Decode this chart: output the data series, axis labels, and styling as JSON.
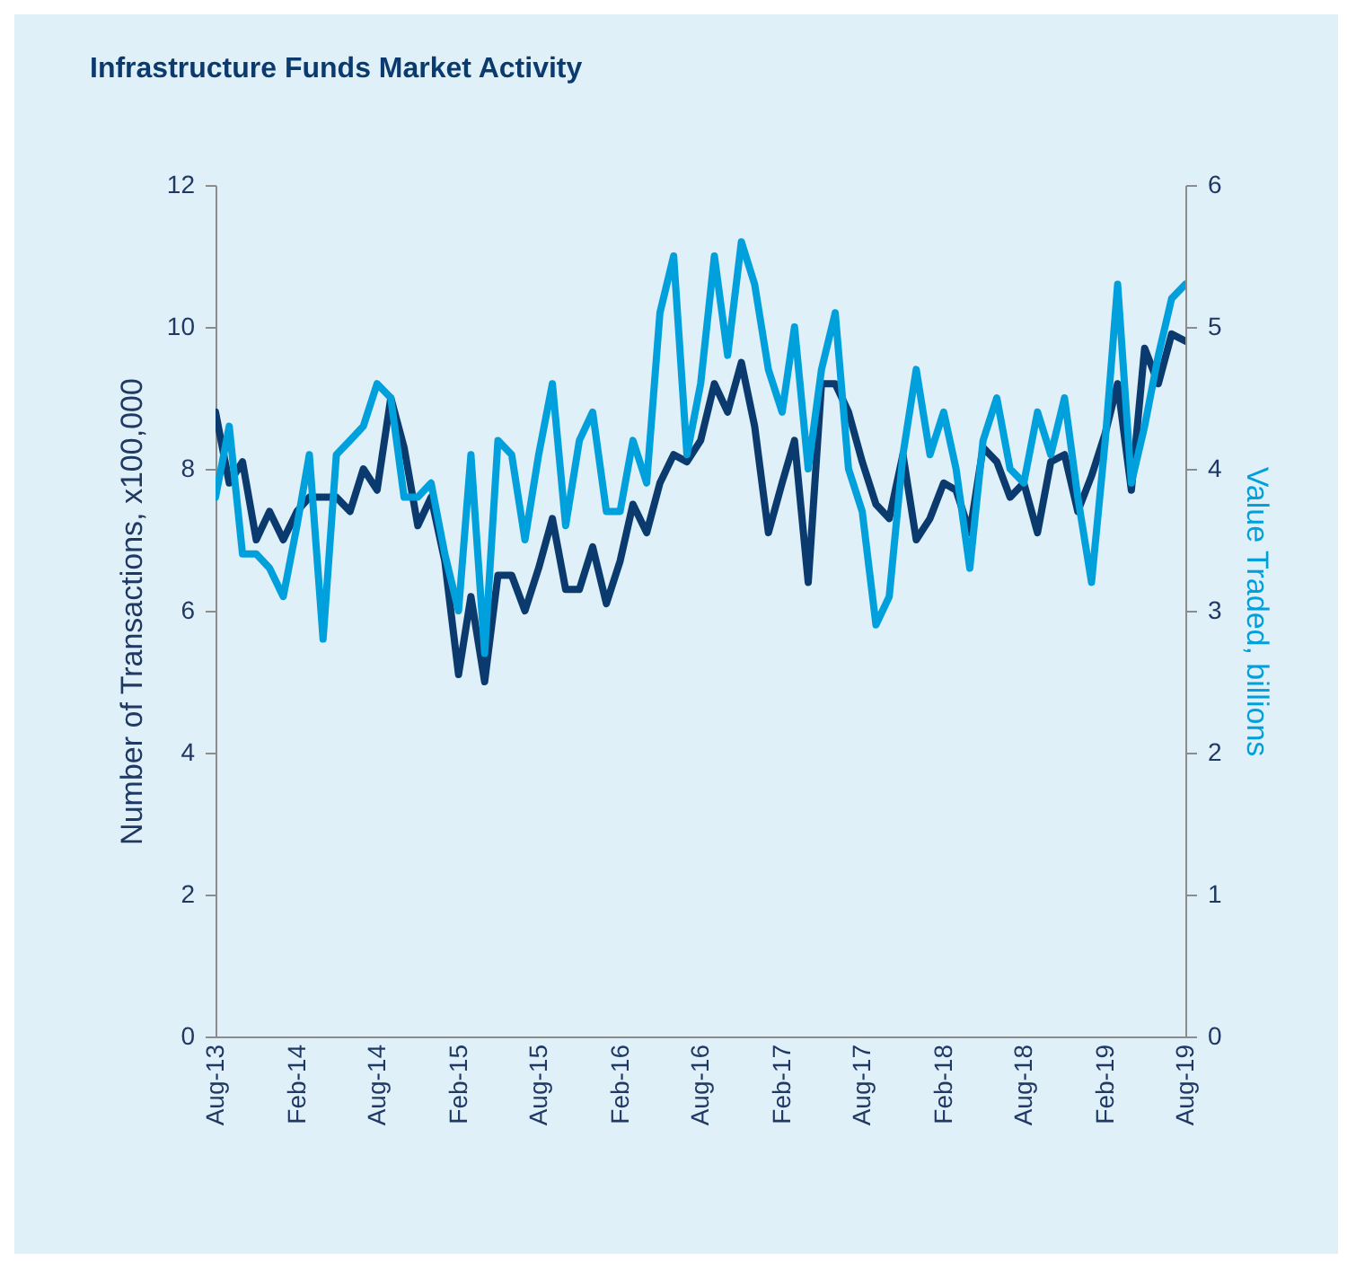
{
  "chart_data": {
    "type": "line",
    "title": "Infrastructure Funds Market Activity",
    "ylabel": "Number of Transactions, x100,000",
    "y2label": "Value Traded, billions",
    "x": [
      "2013-08",
      "2013-09",
      "2013-10",
      "2013-11",
      "2013-12",
      "2014-01",
      "2014-02",
      "2014-03",
      "2014-04",
      "2014-05",
      "2014-06",
      "2014-07",
      "2014-08",
      "2014-09",
      "2014-10",
      "2014-11",
      "2014-12",
      "2015-01",
      "2015-02",
      "2015-03",
      "2015-04",
      "2015-05",
      "2015-06",
      "2015-07",
      "2015-08",
      "2015-09",
      "2015-10",
      "2015-11",
      "2015-12",
      "2016-01",
      "2016-02",
      "2016-03",
      "2016-04",
      "2016-05",
      "2016-06",
      "2016-07",
      "2016-08",
      "2016-09",
      "2016-10",
      "2016-11",
      "2016-12",
      "2017-01",
      "2017-02",
      "2017-03",
      "2017-04",
      "2017-05",
      "2017-06",
      "2017-07",
      "2017-08",
      "2017-09",
      "2017-10",
      "2017-11",
      "2017-12",
      "2018-01",
      "2018-02",
      "2018-03",
      "2018-04",
      "2018-05",
      "2018-06",
      "2018-07",
      "2018-08",
      "2018-09",
      "2018-10",
      "2018-11",
      "2018-12",
      "2019-01",
      "2019-02",
      "2019-03",
      "2019-04",
      "2019-05",
      "2019-06",
      "2019-07",
      "2019-08"
    ],
    "series": [
      {
        "color": "#0b3b6e",
        "values": [
          8.8,
          7.8,
          8.1,
          7.0,
          7.4,
          7.0,
          7.4,
          7.6,
          7.6,
          7.6,
          7.4,
          8.0,
          7.7,
          9.0,
          8.3,
          7.2,
          7.6,
          6.7,
          5.1,
          6.2,
          5.0,
          6.5,
          6.5,
          6.0,
          6.6,
          7.3,
          6.3,
          6.3,
          6.9,
          6.1,
          6.7,
          7.5,
          7.1,
          7.8,
          8.2,
          8.1,
          8.4,
          9.2,
          8.8,
          9.5,
          8.6,
          7.1,
          7.8,
          8.4,
          6.4,
          9.2,
          9.2,
          8.8,
          8.1,
          7.5,
          7.3,
          8.2,
          7.0,
          7.3,
          7.8,
          7.7,
          7.1,
          8.3,
          8.1,
          7.6,
          7.8,
          7.1,
          8.1,
          8.2,
          7.4,
          7.9,
          8.5,
          9.2,
          7.7,
          9.7,
          9.2,
          9.9,
          9.8
        ]
      },
      {
        "color": "#00a0dc",
        "axis": "y2",
        "values": [
          3.8,
          4.3,
          3.4,
          3.4,
          3.3,
          3.1,
          3.6,
          4.1,
          2.8,
          4.1,
          4.2,
          4.3,
          4.6,
          4.5,
          3.8,
          3.8,
          3.9,
          3.4,
          3.0,
          4.1,
          2.7,
          4.2,
          4.1,
          3.5,
          4.1,
          4.6,
          3.6,
          4.2,
          4.4,
          3.7,
          3.7,
          4.2,
          3.9,
          5.1,
          5.5,
          4.1,
          4.6,
          5.5,
          4.8,
          5.6,
          5.3,
          4.7,
          4.4,
          5.0,
          4.0,
          4.7,
          5.1,
          4.0,
          3.7,
          2.9,
          3.1,
          4.1,
          4.7,
          4.1,
          4.4,
          4.0,
          3.3,
          4.2,
          4.5,
          4.0,
          3.9,
          4.4,
          4.1,
          4.5,
          3.8,
          3.2,
          4.2,
          5.3,
          3.9,
          4.3,
          4.8,
          5.2,
          5.3
        ]
      }
    ],
    "xticks": [
      {
        "value": "2013-08",
        "label": "Aug-13"
      },
      {
        "value": "2014-02",
        "label": "Feb-14"
      },
      {
        "value": "2014-08",
        "label": "Aug-14"
      },
      {
        "value": "2015-02",
        "label": "Feb-15"
      },
      {
        "value": "2015-08",
        "label": "Aug-15"
      },
      {
        "value": "2016-02",
        "label": "Feb-16"
      },
      {
        "value": "2016-08",
        "label": "Aug-16"
      },
      {
        "value": "2017-02",
        "label": "Feb-17"
      },
      {
        "value": "2017-08",
        "label": "Aug-17"
      },
      {
        "value": "2018-02",
        "label": "Feb-18"
      },
      {
        "value": "2018-08",
        "label": "Aug-18"
      },
      {
        "value": "2019-02",
        "label": "Feb-19"
      },
      {
        "value": "2019-08",
        "label": "Aug-19"
      }
    ],
    "xlim": [
      "2013-08",
      "2019-08"
    ],
    "ylim": [
      0,
      12
    ],
    "yticks": [
      0,
      2,
      4,
      6,
      8,
      10,
      12
    ],
    "y2lim": [
      0,
      6
    ],
    "y2ticks": [
      0,
      1,
      2,
      3,
      4,
      5,
      6
    ],
    "grid": false
  }
}
